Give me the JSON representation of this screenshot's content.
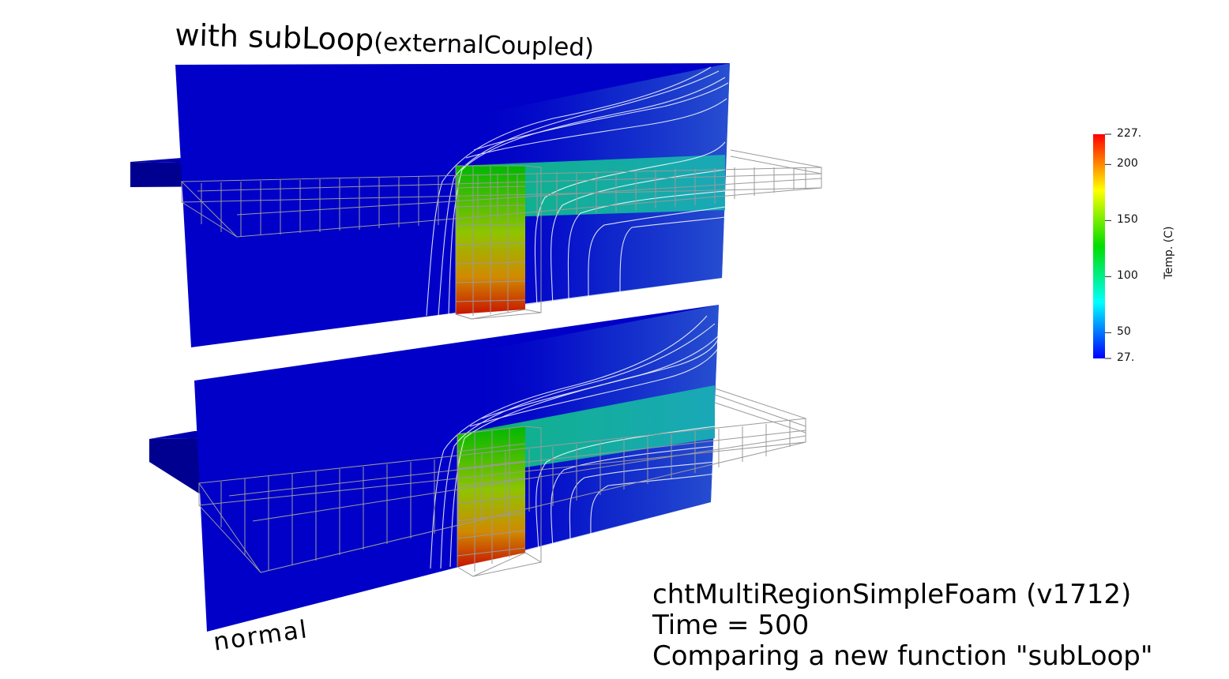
{
  "top_label": {
    "main": "with subLoop",
    "paren": "(externalCoupled)"
  },
  "bottom_label": "normal",
  "caption": {
    "line1": "chtMultiRegionSimpleFoam (v1712)",
    "line2": "Time = 500",
    "line3": "Comparing a new function \"subLoop\""
  },
  "colorbar": {
    "title": "Temp. (C)",
    "ticks": [
      "227.",
      "200",
      "150",
      "100",
      "50",
      "27."
    ],
    "tick_values": [
      227,
      200,
      150,
      100,
      50,
      27
    ],
    "range": [
      27,
      227
    ],
    "colors": [
      "#ff0000",
      "#ffff00",
      "#00cc00",
      "#00ffff",
      "#0000ff"
    ]
  },
  "colors": {
    "cold": "#0000c8",
    "slab_dark": "#00008a",
    "hot": "#cc1a00",
    "warm": "#99cc00",
    "mid": "#00bb00",
    "cool": "#20b0b0",
    "grid_lines": "#9a9a9a",
    "contour_lines": "#ffffff"
  }
}
